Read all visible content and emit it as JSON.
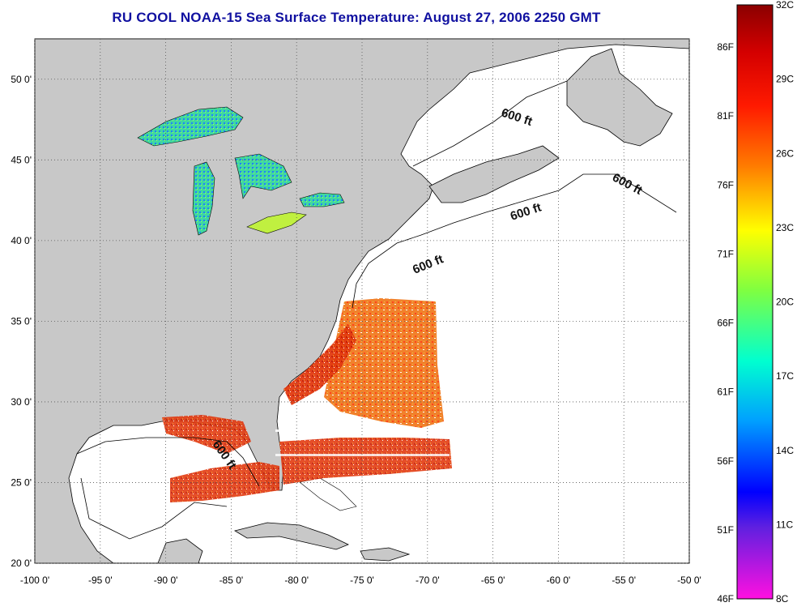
{
  "title": "RU COOL  NOAA-15  Sea Surface Temperature:  August 27, 2006 2250 GMT",
  "map": {
    "lon_range": [
      -100,
      -50
    ],
    "lat_range": [
      20,
      52.5
    ],
    "lon_ticks": [
      "-100 0'",
      "-95 0'",
      "-90 0'",
      "-85 0'",
      "-80 0'",
      "-75 0'",
      "-70 0'",
      "-65 0'",
      "-60 0'",
      "-55 0'",
      "-50 0'"
    ],
    "lat_ticks": [
      "20 0'",
      "25 0'",
      "30 0'",
      "35 0'",
      "40 0'",
      "45 0'",
      "50 0'"
    ],
    "grid": "dotted",
    "land_color": "#c8c8c8",
    "ocean_color": "#ffffff",
    "contour_labels": [
      "600 ft",
      "600 ft",
      "600 ft",
      "600 ft",
      "600 ft"
    ]
  },
  "colorbar": {
    "celsius_labels": [
      "32C",
      "29C",
      "26C",
      "23C",
      "20C",
      "17C",
      "14C",
      "11C",
      "8C"
    ],
    "fahrenheit_labels": [
      "86F",
      "81F",
      "76F",
      "71F",
      "66F",
      "61F",
      "56F",
      "51F",
      "46F"
    ],
    "range_c": [
      8,
      32
    ]
  }
}
